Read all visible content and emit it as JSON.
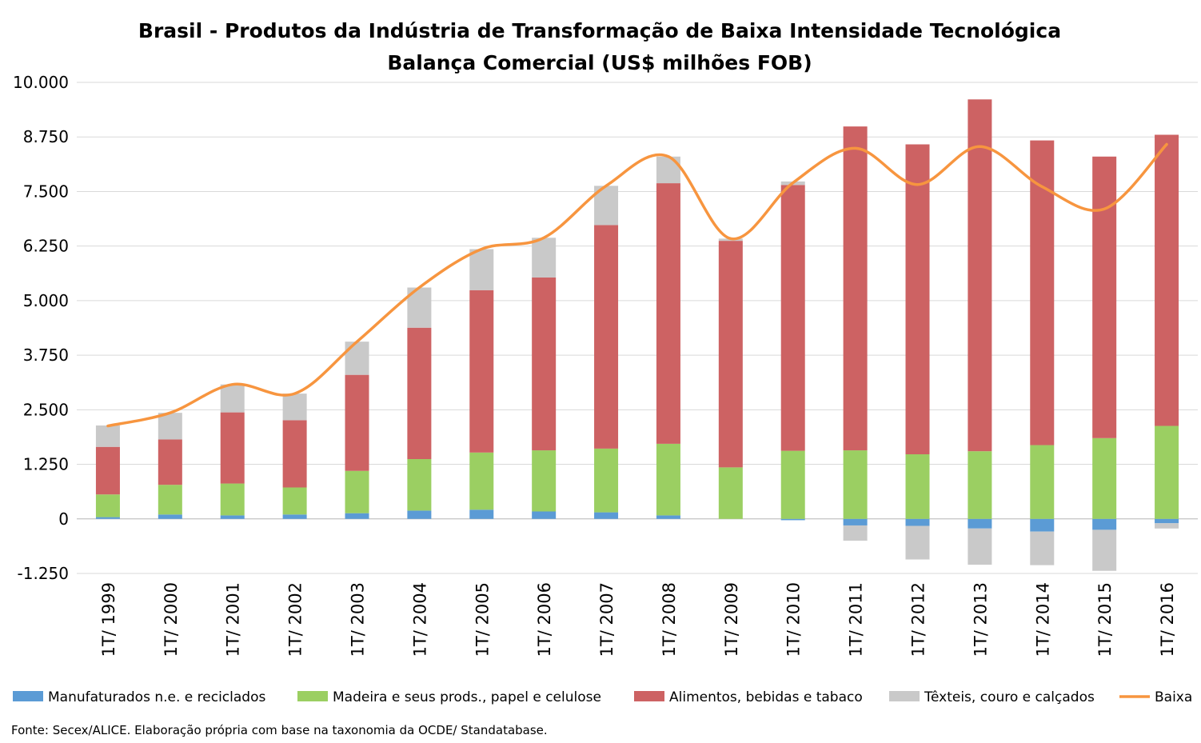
{
  "chart_data": {
    "type": "bar",
    "stacked": true,
    "title": "Brasil - Produtos da Indústria de Transformação de Baixa Intensidade Tecnológica",
    "subtitle": "Balança Comercial (US$ milhões FOB)",
    "source": "Fonte: Secex/ALICE. Elaboração própria com base na taxonomia da OCDE/ Standatabase.",
    "ylim": [
      -1250,
      10000
    ],
    "yticks": [
      -1250,
      0,
      1250,
      2500,
      3750,
      5000,
      6250,
      7500,
      8750,
      10000
    ],
    "ytick_labels": [
      "-1.250",
      "0",
      "1.250",
      "2.500",
      "3.750",
      "5.000",
      "6.250",
      "7.500",
      "8.750",
      "10.000"
    ],
    "grid": true,
    "legend_position": "bottom",
    "categories": [
      "1T/ 1999",
      "1T/ 2000",
      "1T/ 2001",
      "1T/ 2002",
      "1T/ 2003",
      "1T/ 2004",
      "1T/ 2005",
      "1T/ 2006",
      "1T/ 2007",
      "1T/ 2008",
      "1T/ 2009",
      "1T/ 2010",
      "1T/ 2011",
      "1T/ 2012",
      "1T/ 2013",
      "1T/ 2014",
      "1T/ 2015",
      "1T/ 2016"
    ],
    "series": [
      {
        "name": "Manufaturados n.e. e reciclados",
        "kind": "bar",
        "color": "#5b9bd5",
        "values": [
          40,
          100,
          80,
          100,
          130,
          190,
          210,
          170,
          150,
          80,
          0,
          -30,
          -150,
          -160,
          -220,
          -290,
          -250,
          -100
        ]
      },
      {
        "name": "Madeira e seus prods., papel e celulose",
        "kind": "bar",
        "color": "#9bcf62",
        "values": [
          520,
          680,
          730,
          620,
          970,
          1180,
          1310,
          1400,
          1460,
          1640,
          1180,
          1560,
          1570,
          1480,
          1550,
          1690,
          1850,
          2130
        ]
      },
      {
        "name": "Alimentos, bebidas e tabaco",
        "kind": "bar",
        "color": "#cd6263",
        "values": [
          1090,
          1040,
          1630,
          1540,
          2200,
          3010,
          3720,
          3960,
          5120,
          5970,
          5190,
          6090,
          7420,
          7100,
          8060,
          6980,
          6450,
          6670
        ]
      },
      {
        "name": "Têxteis, couro e calçados",
        "kind": "bar",
        "color": "#c9c9c9",
        "values": [
          490,
          610,
          640,
          610,
          760,
          920,
          940,
          910,
          900,
          610,
          50,
          80,
          -350,
          -770,
          -830,
          -770,
          -940,
          -120
        ]
      },
      {
        "name": "Baixa",
        "kind": "line",
        "color": "#f7953f",
        "values": [
          2130,
          2430,
          3080,
          2870,
          4060,
          5300,
          6180,
          6440,
          7630,
          8300,
          6420,
          7700,
          8490,
          7660,
          8530,
          7610,
          7100,
          8580
        ]
      }
    ]
  }
}
